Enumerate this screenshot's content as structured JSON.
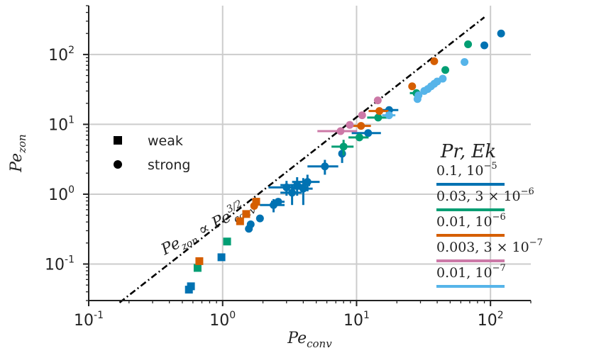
{
  "chart_data": {
    "type": "scatter",
    "xscale": "log",
    "yscale": "log",
    "xlim": [
      0.1,
      200
    ],
    "ylim": [
      0.03,
      500
    ],
    "grid": true,
    "xlabel": {
      "base": "Pe",
      "sub": "conv"
    },
    "ylabel": {
      "base": "Pe",
      "sub": "zon"
    },
    "xticks": [
      {
        "value": 0.1,
        "base": "10",
        "exp": "-1"
      },
      {
        "value": 1,
        "base": "10",
        "exp": "0"
      },
      {
        "value": 10,
        "base": "10",
        "exp": "1"
      },
      {
        "value": 100,
        "base": "10",
        "exp": "2"
      }
    ],
    "yticks": [
      {
        "value": 0.1,
        "base": "10",
        "exp": "-1"
      },
      {
        "value": 1,
        "base": "10",
        "exp": "0"
      },
      {
        "value": 10,
        "base": "10",
        "exp": "1"
      },
      {
        "value": 100,
        "base": "10",
        "exp": "2"
      }
    ],
    "fit_line": {
      "prefactor": 0.4,
      "exponent": 1.5,
      "x_range": [
        0.17,
        90
      ],
      "label": {
        "a": "Pe",
        "a_sub": "zon",
        "rel": " ∝ ",
        "b": "Pe",
        "b_sub": "conv",
        "b_exp": "3/2"
      }
    },
    "marker_legend": [
      {
        "marker": "square",
        "label": "weak"
      },
      {
        "marker": "circle",
        "label": "strong"
      }
    ],
    "color_legend": {
      "title": "Pr, Ek",
      "entries": [
        {
          "label": "0.1, 10",
          "exp": "−5",
          "color": "#0072b2"
        },
        {
          "label": "0.03, 3 × 10",
          "exp": "−6",
          "color": "#009e73"
        },
        {
          "label": "0.01, 10",
          "exp": "−6",
          "color": "#d55e00"
        },
        {
          "label": "0.003, 3 × 10",
          "exp": "−7",
          "color": "#cc79a7"
        },
        {
          "label": "0.01, 10",
          "exp": "−7",
          "color": "#56b4e9"
        }
      ]
    },
    "series": [
      {
        "name": "0.1, 10^-5",
        "color": "#0072b2",
        "points": [
          {
            "x": 0.56,
            "y": 0.043,
            "m": "square"
          },
          {
            "x": 0.58,
            "y": 0.048,
            "m": "square"
          },
          {
            "x": 0.98,
            "y": 0.125,
            "m": "square"
          },
          {
            "x": 1.57,
            "y": 0.32,
            "m": "circle"
          },
          {
            "x": 1.62,
            "y": 0.37,
            "m": "circle"
          },
          {
            "x": 1.9,
            "y": 0.45,
            "m": "circle"
          },
          {
            "x": 2.4,
            "y": 0.7,
            "m": "circle",
            "xerr": 0.5,
            "yerr": 0.15
          },
          {
            "x": 2.6,
            "y": 0.78,
            "m": "circle",
            "xerr": 0.3
          },
          {
            "x": 3.0,
            "y": 1.25,
            "m": "circle",
            "xerr": 0.8,
            "yerr": 0.3
          },
          {
            "x": 3.3,
            "y": 1.05,
            "m": "circle",
            "xerr": 0.6,
            "yerr": 0.35
          },
          {
            "x": 3.6,
            "y": 1.35,
            "m": "circle",
            "xerr": 0.9,
            "yerr": 0.4
          },
          {
            "x": 4.0,
            "y": 1.2,
            "m": "circle",
            "xerr": 0.7,
            "yerr": 0.5
          },
          {
            "x": 4.3,
            "y": 1.5,
            "m": "circle",
            "xerr": 1.0,
            "yerr": 0.4
          },
          {
            "x": 5.8,
            "y": 2.5,
            "m": "circle",
            "xerr": 1.5,
            "yerr": 0.6
          },
          {
            "x": 7.8,
            "y": 3.8,
            "m": "circle",
            "yerr": 1.0
          },
          {
            "x": 12.2,
            "y": 7.5,
            "m": "circle",
            "xerr": 3.0
          },
          {
            "x": 17.5,
            "y": 16,
            "m": "circle",
            "xerr": 3.0
          },
          {
            "x": 90,
            "y": 135,
            "m": "circle"
          },
          {
            "x": 120,
            "y": 200,
            "m": "circle"
          }
        ]
      },
      {
        "name": "0.03, 3x10^-6",
        "color": "#009e73",
        "points": [
          {
            "x": 0.65,
            "y": 0.088,
            "m": "square"
          },
          {
            "x": 1.08,
            "y": 0.21,
            "m": "square"
          },
          {
            "x": 8.0,
            "y": 4.8,
            "m": "circle",
            "xerr": 1.5,
            "yerr": 1.2
          },
          {
            "x": 10.5,
            "y": 6.5,
            "m": "circle",
            "xerr": 1.8
          },
          {
            "x": 14.5,
            "y": 12.5,
            "m": "circle",
            "xerr": 2.5
          },
          {
            "x": 28,
            "y": 28,
            "m": "circle",
            "xerr": 3.0
          },
          {
            "x": 46,
            "y": 60,
            "m": "circle"
          },
          {
            "x": 68,
            "y": 140,
            "m": "circle"
          }
        ]
      },
      {
        "name": "0.01, 10^-6",
        "color": "#d55e00",
        "points": [
          {
            "x": 0.67,
            "y": 0.11,
            "m": "square"
          },
          {
            "x": 1.35,
            "y": 0.41,
            "m": "square"
          },
          {
            "x": 1.5,
            "y": 0.52,
            "m": "square"
          },
          {
            "x": 1.72,
            "y": 0.68,
            "m": "circle"
          },
          {
            "x": 1.78,
            "y": 0.78,
            "m": "square"
          },
          {
            "x": 10.8,
            "y": 9.5,
            "m": "circle",
            "xerr": 2.0
          },
          {
            "x": 14.8,
            "y": 15.5,
            "m": "circle",
            "xerr": 2.5
          },
          {
            "x": 26,
            "y": 35,
            "m": "circle"
          },
          {
            "x": 38,
            "y": 80,
            "m": "circle"
          }
        ]
      },
      {
        "name": "0.003, 3x10^-7",
        "color": "#cc79a7",
        "points": [
          {
            "x": 7.6,
            "y": 8.0,
            "m": "circle",
            "xerr": 2.5
          },
          {
            "x": 8.9,
            "y": 9.8,
            "m": "circle"
          },
          {
            "x": 11.0,
            "y": 13.5,
            "m": "circle"
          },
          {
            "x": 14.4,
            "y": 22,
            "m": "circle"
          }
        ]
      },
      {
        "name": "0.01, 10^-7",
        "color": "#56b4e9",
        "points": [
          {
            "x": 17.5,
            "y": 13.5,
            "m": "circle",
            "xerr": 2.0
          },
          {
            "x": 28.5,
            "y": 23,
            "m": "circle"
          },
          {
            "x": 29,
            "y": 26,
            "m": "circle"
          },
          {
            "x": 32,
            "y": 30,
            "m": "circle"
          },
          {
            "x": 34,
            "y": 32,
            "m": "circle"
          },
          {
            "x": 36,
            "y": 35,
            "m": "circle"
          },
          {
            "x": 38,
            "y": 38,
            "m": "circle"
          },
          {
            "x": 40,
            "y": 41,
            "m": "circle"
          },
          {
            "x": 44,
            "y": 45,
            "m": "circle"
          },
          {
            "x": 64,
            "y": 78,
            "m": "circle"
          }
        ]
      }
    ]
  }
}
